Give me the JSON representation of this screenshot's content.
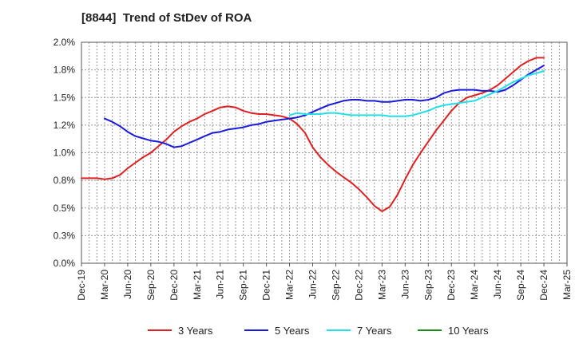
{
  "chart_data": {
    "type": "line",
    "title": "[8844]  Trend of StDev of ROA",
    "xlabel": "",
    "ylabel": "",
    "x_categories": [
      "Dec-19",
      "Mar-20",
      "Jun-20",
      "Sep-20",
      "Dec-20",
      "Mar-21",
      "Jun-21",
      "Sep-21",
      "Dec-21",
      "Mar-22",
      "Jun-22",
      "Sep-22",
      "Dec-22",
      "Mar-23",
      "Jun-23",
      "Sep-23",
      "Dec-23",
      "Mar-24",
      "Jun-24",
      "Sep-24",
      "Dec-24",
      "Mar-25"
    ],
    "y_ticks": [
      "0.0%",
      "0.3%",
      "0.5%",
      "0.8%",
      "1.0%",
      "1.2%",
      "1.5%",
      "1.8%",
      "2.0%"
    ],
    "ylim": [
      0,
      2.0
    ],
    "grid": true,
    "legend_position": "bottom",
    "series": [
      {
        "name": "3 Years",
        "color": "#e02020",
        "x": [
          0,
          0.33,
          0.67,
          1,
          1.33,
          1.67,
          2,
          2.33,
          2.67,
          3,
          3.33,
          3.67,
          4,
          4.33,
          4.67,
          5,
          5.33,
          5.67,
          6,
          6.33,
          6.67,
          7,
          7.33,
          7.67,
          8,
          8.33,
          8.67,
          9,
          9.33,
          9.67,
          10,
          10.33,
          10.67,
          11,
          11.33,
          11.67,
          12,
          12.33,
          12.67,
          13,
          13.33,
          13.67,
          14,
          14.33,
          14.67,
          15,
          15.33,
          15.67,
          16,
          16.33,
          16.67,
          17,
          17.33,
          17.67,
          18,
          18.33,
          18.67,
          19,
          19.33,
          19.67,
          20
        ],
        "values": [
          0.77,
          0.77,
          0.77,
          0.76,
          0.77,
          0.8,
          0.86,
          0.91,
          0.96,
          1.0,
          1.06,
          1.12,
          1.19,
          1.24,
          1.28,
          1.31,
          1.35,
          1.38,
          1.41,
          1.42,
          1.41,
          1.38,
          1.36,
          1.35,
          1.35,
          1.34,
          1.33,
          1.31,
          1.26,
          1.18,
          1.05,
          0.96,
          0.89,
          0.83,
          0.78,
          0.73,
          0.67,
          0.6,
          0.52,
          0.47,
          0.51,
          0.62,
          0.76,
          0.89,
          1.0,
          1.1,
          1.2,
          1.29,
          1.38,
          1.45,
          1.5,
          1.52,
          1.54,
          1.57,
          1.61,
          1.67,
          1.73,
          1.79,
          1.83,
          1.86,
          1.86
        ]
      },
      {
        "name": "5 Years",
        "color": "#1a1adc",
        "x": [
          1,
          1.33,
          1.67,
          2,
          2.33,
          2.67,
          3,
          3.33,
          3.67,
          4,
          4.33,
          4.67,
          5,
          5.33,
          5.67,
          6,
          6.33,
          6.67,
          7,
          7.33,
          7.67,
          8,
          8.33,
          8.67,
          9,
          9.33,
          9.67,
          10,
          10.33,
          10.67,
          11,
          11.33,
          11.67,
          12,
          12.33,
          12.67,
          13,
          13.33,
          13.67,
          14,
          14.33,
          14.67,
          15,
          15.33,
          15.67,
          16,
          16.33,
          16.67,
          17,
          17.33,
          17.67,
          18,
          18.33,
          18.67,
          19,
          19.33,
          19.67,
          20
        ],
        "values": [
          1.31,
          1.28,
          1.24,
          1.19,
          1.15,
          1.13,
          1.11,
          1.1,
          1.08,
          1.05,
          1.06,
          1.09,
          1.12,
          1.15,
          1.18,
          1.19,
          1.21,
          1.22,
          1.23,
          1.25,
          1.26,
          1.28,
          1.29,
          1.3,
          1.31,
          1.32,
          1.34,
          1.37,
          1.4,
          1.43,
          1.45,
          1.47,
          1.48,
          1.48,
          1.47,
          1.47,
          1.46,
          1.46,
          1.47,
          1.48,
          1.48,
          1.47,
          1.48,
          1.5,
          1.54,
          1.56,
          1.57,
          1.57,
          1.57,
          1.56,
          1.56,
          1.55,
          1.57,
          1.61,
          1.66,
          1.71,
          1.75,
          1.79
        ]
      },
      {
        "name": "7 Years",
        "color": "#22e0e8",
        "x": [
          9,
          9.33,
          9.67,
          10,
          10.33,
          10.67,
          11,
          11.33,
          11.67,
          12,
          12.33,
          12.67,
          13,
          13.33,
          13.67,
          14,
          14.33,
          14.67,
          15,
          15.33,
          15.67,
          16,
          16.33,
          16.67,
          17,
          17.33,
          17.67,
          18,
          18.33,
          18.67,
          19,
          19.33,
          19.67,
          20
        ],
        "values": [
          1.34,
          1.36,
          1.35,
          1.35,
          1.35,
          1.36,
          1.36,
          1.35,
          1.34,
          1.34,
          1.34,
          1.34,
          1.34,
          1.33,
          1.33,
          1.33,
          1.34,
          1.36,
          1.38,
          1.41,
          1.43,
          1.44,
          1.45,
          1.46,
          1.47,
          1.5,
          1.53,
          1.56,
          1.6,
          1.64,
          1.67,
          1.7,
          1.72,
          1.74
        ]
      },
      {
        "name": "10 Years",
        "color": "#1a8a1a",
        "x": [],
        "values": []
      }
    ]
  }
}
